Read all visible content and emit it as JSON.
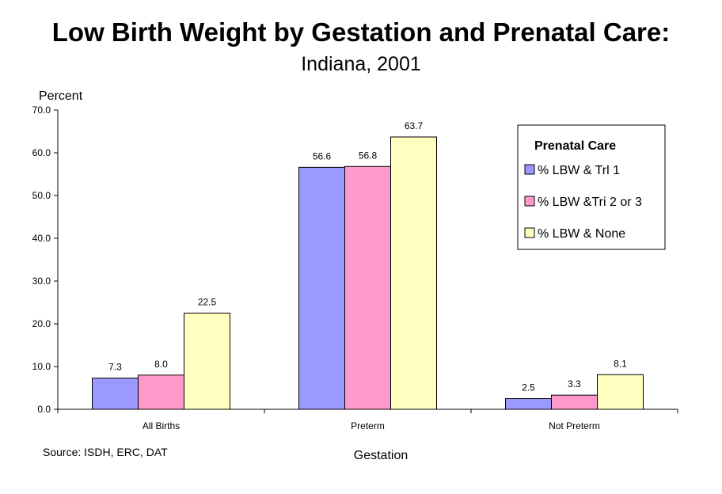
{
  "title": "Low Birth Weight by Gestation and Prenatal Care:",
  "subtitle": "Indiana, 2001",
  "source": "Source:  ISDH, ERC, DAT",
  "chart_data": {
    "type": "bar",
    "title": "Low Birth Weight by Gestation and Prenatal Care:",
    "subtitle": "Indiana, 2001",
    "xlabel": "Gestation",
    "ylabel": "Percent",
    "ylim": [
      0,
      70
    ],
    "yticks": [
      "0.0",
      "10.0",
      "20.0",
      "30.0",
      "40.0",
      "50.0",
      "60.0",
      "70.0"
    ],
    "categories": [
      "All Births",
      "Preterm",
      "Not Preterm"
    ],
    "legend_title": "Prenatal Care",
    "legend_position": "top-right",
    "grid": false,
    "series": [
      {
        "name": "% LBW & Trl 1",
        "color": "#9999ff",
        "values": [
          7.3,
          56.6,
          2.5
        ],
        "labels": [
          "7.3",
          "56.6",
          "2.5"
        ]
      },
      {
        "name": "% LBW &Tri 2 or 3",
        "color": "#ff99cc",
        "values": [
          8.0,
          56.8,
          3.3
        ],
        "labels": [
          "8.0",
          "56.8",
          "3.3"
        ]
      },
      {
        "name": "% LBW & None",
        "color": "#ffffc0",
        "values": [
          22.5,
          63.7,
          8.1
        ],
        "labels": [
          "22.5",
          "63.7",
          "8.1"
        ]
      }
    ]
  }
}
